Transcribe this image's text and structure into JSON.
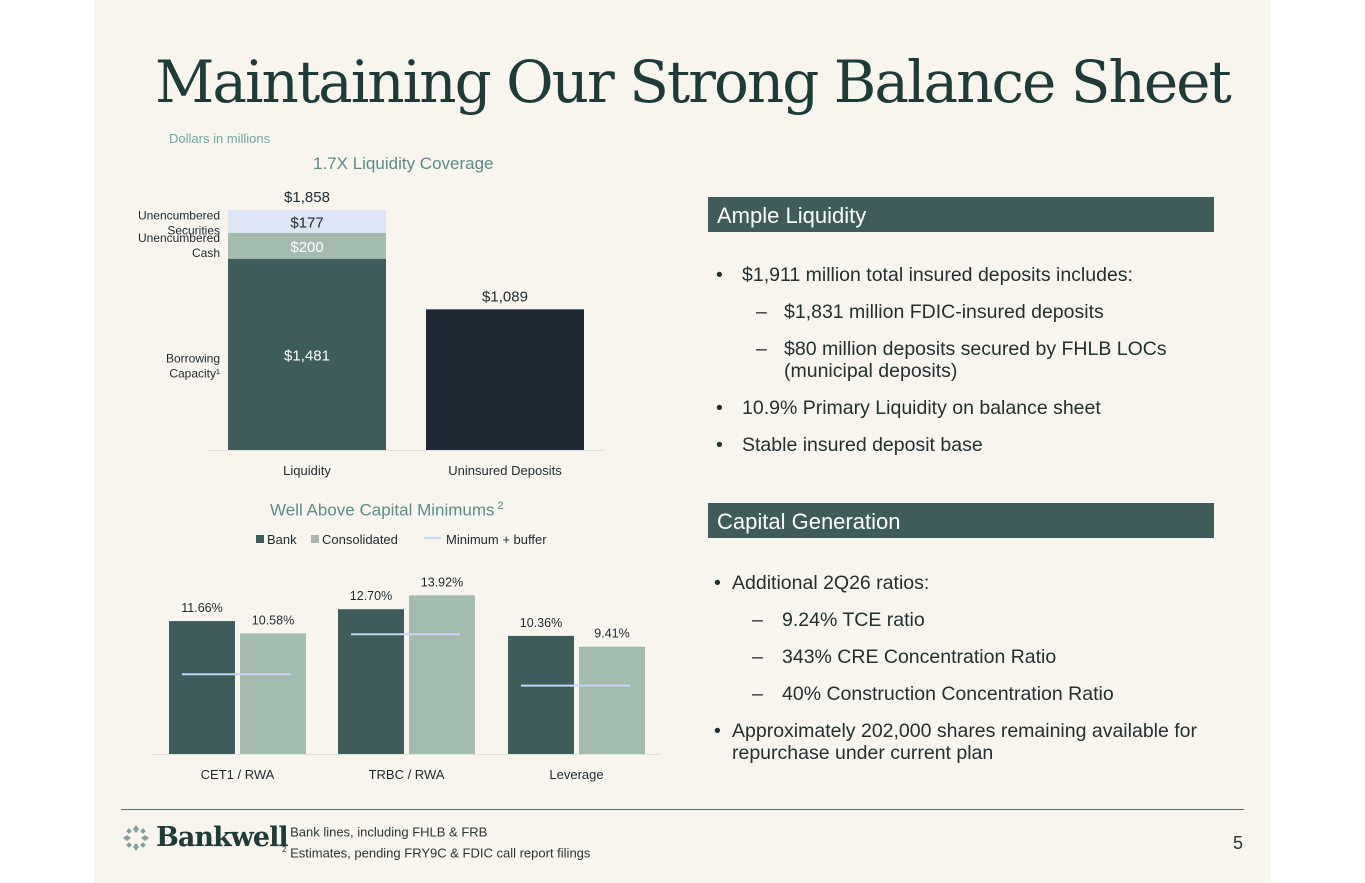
{
  "title": "Maintaining Our Strong Balance Sheet",
  "units_note": "Dollars in millions",
  "colors": {
    "dark_teal": "#3d5c5a",
    "navy": "#1f2935",
    "sage": "#a3bcaf",
    "light_blue": "#dde5f5",
    "min_buffer_line": "#c7d6f3",
    "accent_text": "#5b8d87"
  },
  "chart_data": [
    {
      "type": "bar",
      "title": "1.7X Liquidity Coverage",
      "categories": [
        "Liquidity",
        "Uninsured Deposits"
      ],
      "stacked": true,
      "series": [
        {
          "name": "Borrowing Capacity¹",
          "values": [
            1481,
            null
          ],
          "label": "$1,481"
        },
        {
          "name": "Unencumbered Cash",
          "values": [
            200,
            null
          ],
          "label": "$200"
        },
        {
          "name": "Unencumbered Securities",
          "values": [
            177,
            null
          ],
          "label": "$177"
        },
        {
          "name": "Uninsured Deposits",
          "values": [
            null,
            1089
          ],
          "label": "$1,089"
        }
      ],
      "totals": [
        {
          "category": "Liquidity",
          "value": 1858,
          "label": "$1,858"
        },
        {
          "category": "Uninsured Deposits",
          "value": 1089,
          "label": "$1,089"
        }
      ],
      "segment_labels": {
        "borrowing_l1": "Borrowing",
        "borrowing_l2": "Capacity¹",
        "cash_l1": "Unencumbered",
        "cash_l2": "Cash",
        "securities_l1": "Unencumbered",
        "securities_l2": "Securities"
      },
      "ylim": [
        0,
        1858
      ]
    },
    {
      "type": "bar",
      "title": "Well Above Capital Minimums",
      "title_superscript": "2",
      "categories": [
        "CET1 / RWA",
        "TRBC / RWA",
        "Leverage"
      ],
      "series": [
        {
          "name": "Bank",
          "values": [
            11.66,
            12.7,
            10.36
          ],
          "labels": [
            "11.66%",
            "12.70%",
            "10.36%"
          ]
        },
        {
          "name": "Consolidated",
          "values": [
            10.58,
            13.92,
            9.41
          ],
          "labels": [
            "10.58%",
            "13.92%",
            "9.41%"
          ]
        }
      ],
      "reference": {
        "name": "Minimum + buffer",
        "values": [
          7.0,
          10.5,
          6.0
        ]
      },
      "ylim": [
        0,
        15
      ],
      "legend_position": "top"
    }
  ],
  "liquidity": {
    "heading": "Ample Liquidity",
    "b1": "$1,911 million total insured deposits includes:",
    "s1": "$1,831 million FDIC-insured deposits",
    "s2": "$80 million deposits secured by FHLB LOCs (municipal deposits)",
    "b2": "10.9% Primary Liquidity on balance sheet",
    "b3": "Stable insured deposit base"
  },
  "capital": {
    "heading": "Capital Generation",
    "b1": "Additional 2Q26 ratios:",
    "s1": "9.24% TCE ratio",
    "s2": "343% CRE Concentration Ratio",
    "s3": "40% Construction Concentration Ratio",
    "b2": "Approximately 202,000 shares remaining available for repurchase under current plan"
  },
  "footer": {
    "brand": "Bankwell",
    "fn1_mark": "1",
    "fn1": "Bank lines, including FHLB & FRB",
    "fn2_mark": "2",
    "fn2": "Estimates, pending FRY9C & FDIC call report filings",
    "page": "5"
  }
}
